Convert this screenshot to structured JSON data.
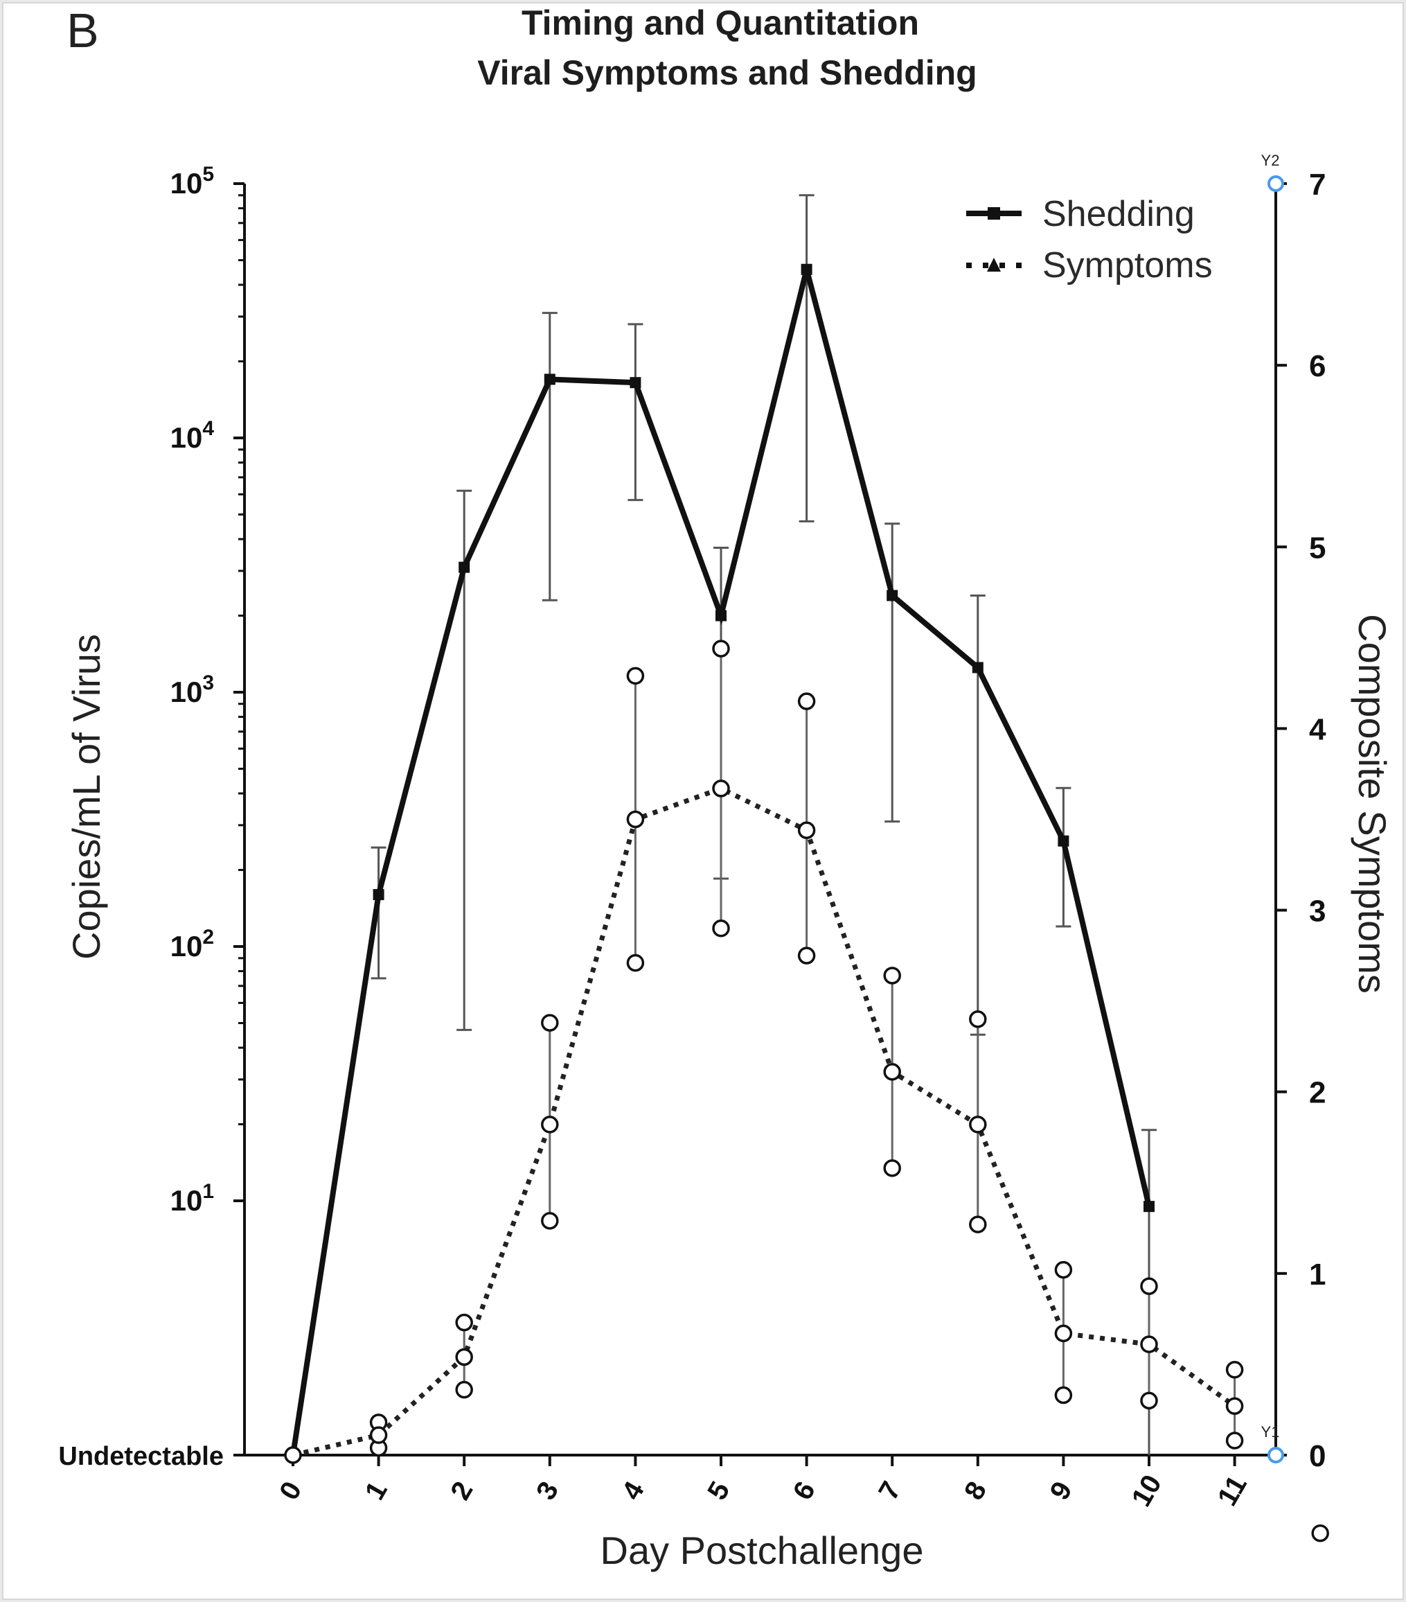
{
  "panel_letter": "B",
  "chart_data": {
    "type": "line",
    "title": "Timing and Quantitation",
    "subtitle": "Viral Symptoms and Shedding",
    "xlabel": "Day Postchallenge",
    "ylabel_left": "Copies/mL of Virus",
    "ylabel_right": "Composite Symptoms",
    "x": [
      0,
      1,
      2,
      3,
      4,
      5,
      6,
      7,
      8,
      9,
      10,
      11
    ],
    "y_left_scale": "log",
    "y_left_baseline_label": "Undetectable",
    "y_left_ticks": [
      {
        "value": 10,
        "base": "10",
        "exp": "1"
      },
      {
        "value": 100,
        "base": "10",
        "exp": "2"
      },
      {
        "value": 1000,
        "base": "10",
        "exp": "3"
      },
      {
        "value": 10000,
        "base": "10",
        "exp": "4"
      },
      {
        "value": 100000,
        "base": "10",
        "exp": "5"
      }
    ],
    "y_right_range": [
      0,
      7
    ],
    "y_right_ticks": [
      "0",
      "1",
      "2",
      "3",
      "4",
      "5",
      "6",
      "7"
    ],
    "right_axis_markers": [
      "Y2",
      "Y1"
    ],
    "legend_position": "top-right",
    "series": [
      {
        "name": "Shedding",
        "axis": "left",
        "style": "solid",
        "marker": "square",
        "color": "#111111",
        "x": [
          0,
          1,
          2,
          3,
          4,
          5,
          6,
          7,
          8,
          9,
          10
        ],
        "values": [
          null,
          160,
          3100,
          17000,
          16500,
          2000,
          46000,
          2400,
          1250,
          260,
          9.5
        ],
        "error_low": [
          null,
          75,
          47,
          2300,
          5700,
          185,
          4700,
          310,
          45,
          120,
          null
        ],
        "error_high": [
          null,
          245,
          6200,
          31000,
          28000,
          3700,
          90000,
          4600,
          2400,
          420,
          19
        ]
      },
      {
        "name": "Symptoms",
        "axis": "right",
        "style": "dotted",
        "marker": "triangle",
        "color": "#111111",
        "x": [
          0,
          1,
          2,
          3,
          4,
          5,
          6,
          7,
          8,
          9,
          10,
          11
        ],
        "values": [
          0,
          0.11,
          0.54,
          1.82,
          3.5,
          3.67,
          3.44,
          2.11,
          1.82,
          0.67,
          0.61,
          0.27
        ],
        "error_low": [
          0,
          0.04,
          0.36,
          1.29,
          2.71,
          2.9,
          2.75,
          1.58,
          1.27,
          0.33,
          0.3,
          0.08
        ],
        "error_high": [
          0,
          0.18,
          0.73,
          2.38,
          4.29,
          4.44,
          4.15,
          2.64,
          2.4,
          1.02,
          0.93,
          0.47
        ]
      }
    ],
    "extra_marker": {
      "x": 12,
      "y": -0.43
    }
  }
}
